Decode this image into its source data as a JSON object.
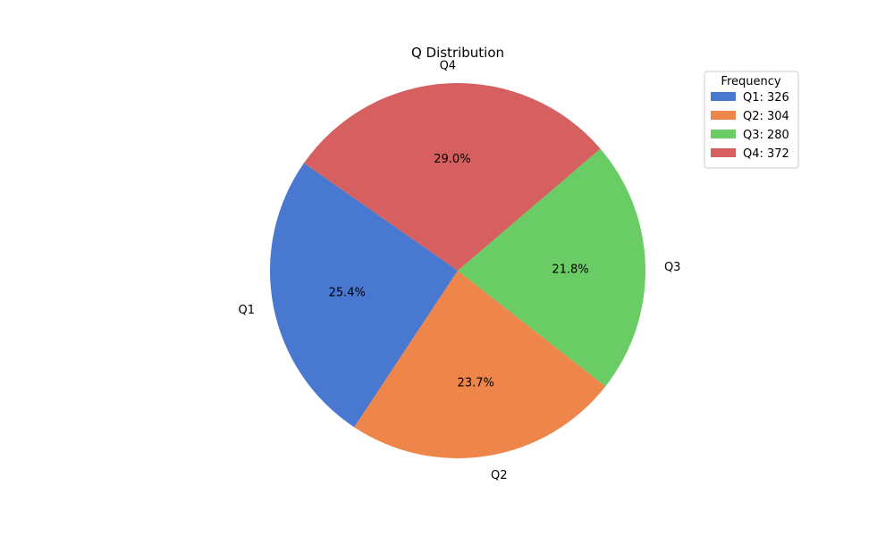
{
  "chart_data": {
    "type": "pie",
    "title": "Q Distribution",
    "categories": [
      "Q1",
      "Q2",
      "Q3",
      "Q4"
    ],
    "values": [
      326,
      304,
      280,
      372
    ],
    "percent_labels": [
      "25.4%",
      "23.7%",
      "21.8%",
      "29.0%"
    ],
    "colors": [
      "#4878d0",
      "#ee854a",
      "#6acc64",
      "#d65f5f"
    ],
    "start_angle_deg": 145,
    "direction": "counterclockwise",
    "legend": {
      "title": "Frequency",
      "placement": "top-right",
      "entries": [
        "Q1: 326",
        "Q2: 304",
        "Q3: 280",
        "Q4: 372"
      ]
    }
  }
}
